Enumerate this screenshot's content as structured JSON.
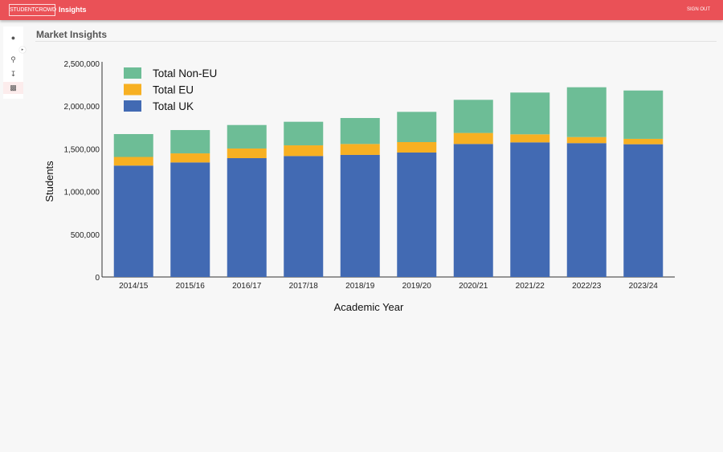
{
  "header": {
    "logo": "STUDENTCROWD",
    "title": "Insights",
    "sign_out": "SIGN OUT"
  },
  "sidebar": {
    "items": [
      {
        "icon": "user-icon"
      },
      {
        "icon": "search-analytics-icon"
      },
      {
        "icon": "download-icon"
      },
      {
        "icon": "bar-chart-icon",
        "active": true
      }
    ]
  },
  "page": {
    "title": "Market Insights"
  },
  "chart_data": {
    "type": "bar",
    "stacked": true,
    "title": "",
    "xlabel": "Academic Year",
    "ylabel": "Students",
    "ylim": [
      0,
      2500000
    ],
    "yticks": [
      "0",
      "500,000",
      "1,000,000",
      "1,500,000",
      "2,000,000",
      "2,500,000"
    ],
    "legend_position": "top-left",
    "grid": false,
    "categories": [
      "2014/15",
      "2015/16",
      "2016/17",
      "2017/18",
      "2018/19",
      "2019/20",
      "2020/21",
      "2021/22",
      "2022/23",
      "2023/24"
    ],
    "series": [
      {
        "name": "Total UK",
        "color": "#426ab3",
        "values": [
          1304000,
          1341000,
          1391000,
          1416000,
          1429000,
          1457000,
          1557000,
          1576000,
          1567000,
          1554000
        ]
      },
      {
        "name": "Total EU",
        "color": "#f7b022",
        "values": [
          101000,
          106000,
          113000,
          125000,
          128000,
          122000,
          129000,
          94000,
          71000,
          63000
        ]
      },
      {
        "name": "Total Non-EU",
        "color": "#6dbd96",
        "values": [
          268000,
          273000,
          275000,
          276000,
          304000,
          354000,
          388000,
          489000,
          583000,
          566000
        ]
      }
    ],
    "legend_order": [
      "Total Non-EU",
      "Total EU",
      "Total UK"
    ]
  }
}
